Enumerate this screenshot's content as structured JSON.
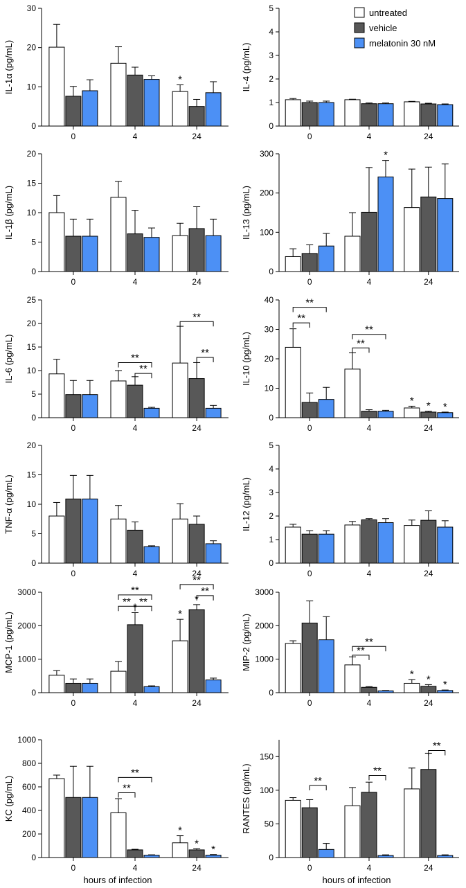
{
  "colors": {
    "untreated": "#ffffff",
    "vehicle": "#585858",
    "melatonin": "#4c90f5",
    "edge": "#000000"
  },
  "legend": [
    {
      "key": "untreated",
      "label": "untreated"
    },
    {
      "key": "vehicle",
      "label": "vehicle"
    },
    {
      "key": "melatonin",
      "label": "melatonin 30 nM"
    }
  ],
  "x_axis_label": "hours of infection",
  "chart_data": [
    {
      "id": "il1a",
      "type": "bar",
      "ylabel": "IL-1α (pg/mL)",
      "ylim": [
        0,
        30
      ],
      "yticks": [
        0,
        10,
        20,
        30
      ],
      "categories": [
        "0",
        "4",
        "24"
      ],
      "series": [
        {
          "name": "untreated",
          "values": [
            20.1,
            16.0,
            8.8
          ],
          "errors": [
            5.8,
            4.2,
            1.7
          ]
        },
        {
          "name": "vehicle",
          "values": [
            7.6,
            13.0,
            5.0
          ],
          "errors": [
            2.5,
            2.0,
            1.8
          ]
        },
        {
          "name": "melatonin 30 nM",
          "values": [
            9.0,
            11.9,
            8.5
          ],
          "errors": [
            2.8,
            0.9,
            2.8
          ]
        }
      ],
      "stars": [
        {
          "group": 2,
          "series": 0,
          "label": "*"
        }
      ],
      "brackets": []
    },
    {
      "id": "il4",
      "type": "bar",
      "ylabel": "IL-4 (pg/mL)",
      "ylim": [
        0,
        5
      ],
      "yticks": [
        0,
        1,
        2,
        3,
        4,
        5
      ],
      "categories": [
        "0",
        "4",
        "24"
      ],
      "series": [
        {
          "name": "untreated",
          "values": [
            1.12,
            1.12,
            1.03
          ],
          "errors": [
            0.05,
            0.02,
            0.02
          ]
        },
        {
          "name": "vehicle",
          "values": [
            1.0,
            0.95,
            0.94
          ],
          "errors": [
            0.06,
            0.03,
            0.03
          ]
        },
        {
          "name": "melatonin 30 nM",
          "values": [
            1.0,
            0.95,
            0.91
          ],
          "errors": [
            0.06,
            0.03,
            0.03
          ]
        }
      ],
      "stars": [],
      "brackets": []
    },
    {
      "id": "il1b",
      "type": "bar",
      "ylabel": "IL-1β (pg/mL)",
      "ylim": [
        0,
        20
      ],
      "yticks": [
        0,
        5,
        10,
        15,
        20
      ],
      "categories": [
        "0",
        "4",
        "24"
      ],
      "series": [
        {
          "name": "untreated",
          "values": [
            10.0,
            12.6,
            6.1
          ],
          "errors": [
            2.9,
            2.7,
            2.1
          ]
        },
        {
          "name": "vehicle",
          "values": [
            6.0,
            6.4,
            7.3
          ],
          "errors": [
            2.9,
            4.0,
            3.7
          ]
        },
        {
          "name": "melatonin 30 nM",
          "values": [
            6.0,
            5.8,
            6.1
          ],
          "errors": [
            2.9,
            1.6,
            2.8
          ]
        }
      ],
      "stars": [],
      "brackets": []
    },
    {
      "id": "il13",
      "type": "bar",
      "ylabel": "IL-13 (pg/mL)",
      "ylim": [
        0,
        300
      ],
      "yticks": [
        0,
        100,
        200,
        300
      ],
      "categories": [
        "0",
        "4",
        "24"
      ],
      "series": [
        {
          "name": "untreated",
          "values": [
            38,
            90,
            163
          ],
          "errors": [
            20,
            60,
            98
          ]
        },
        {
          "name": "vehicle",
          "values": [
            46,
            151,
            190
          ],
          "errors": [
            22,
            114,
            76
          ]
        },
        {
          "name": "melatonin 30 nM",
          "values": [
            65,
            241,
            186
          ],
          "errors": [
            32,
            42,
            88
          ]
        }
      ],
      "stars": [
        {
          "group": 1,
          "series": 2,
          "label": "*"
        }
      ],
      "brackets": []
    },
    {
      "id": "il6",
      "type": "bar",
      "ylabel": "IL-6 (pg/mL)",
      "ylim": [
        0,
        25
      ],
      "yticks": [
        0,
        5,
        10,
        15,
        20,
        25
      ],
      "categories": [
        "0",
        "4",
        "24"
      ],
      "series": [
        {
          "name": "untreated",
          "values": [
            9.3,
            7.8,
            11.6
          ],
          "errors": [
            3.1,
            2.2,
            7.8
          ]
        },
        {
          "name": "vehicle",
          "values": [
            4.9,
            6.9,
            8.3
          ],
          "errors": [
            3.0,
            1.8,
            3.4
          ]
        },
        {
          "name": "melatonin 30 nM",
          "values": [
            4.9,
            2.0,
            2.0
          ],
          "errors": [
            3.0,
            0.2,
            0.6
          ]
        }
      ],
      "stars": [],
      "brackets": [
        {
          "group": 1,
          "from": 0,
          "to": 2,
          "y": 11.7,
          "label": "**"
        },
        {
          "group": 1,
          "from": 1,
          "to": 2,
          "y": 9.4,
          "label": "**"
        },
        {
          "group": 2,
          "from": 0,
          "to": 2,
          "y": 20.4,
          "label": "**"
        },
        {
          "group": 2,
          "from": 1,
          "to": 2,
          "y": 12.8,
          "label": "**"
        }
      ]
    },
    {
      "id": "il10",
      "type": "bar",
      "ylabel": "IL-10 (pg/mL)",
      "ylim": [
        0,
        40
      ],
      "yticks": [
        0,
        10,
        20,
        30,
        40
      ],
      "categories": [
        "0",
        "4",
        "24"
      ],
      "series": [
        {
          "name": "untreated",
          "values": [
            23.9,
            16.5,
            3.3
          ],
          "errors": [
            6.3,
            5.6,
            0.6
          ]
        },
        {
          "name": "vehicle",
          "values": [
            5.2,
            2.2,
            1.9
          ],
          "errors": [
            3.2,
            0.5,
            0.3
          ]
        },
        {
          "name": "melatonin 30 nM",
          "values": [
            6.2,
            2.2,
            1.7
          ],
          "errors": [
            4.1,
            0.3,
            0.2
          ]
        }
      ],
      "stars": [
        {
          "group": 2,
          "series": 0,
          "label": "*"
        },
        {
          "group": 2,
          "series": 1,
          "label": "*"
        },
        {
          "group": 2,
          "series": 2,
          "label": "*"
        }
      ],
      "brackets": [
        {
          "group": 0,
          "from": 0,
          "to": 2,
          "y": 37.5,
          "label": "**"
        },
        {
          "group": 0,
          "from": 0,
          "to": 1,
          "y": 32.2,
          "label": "**"
        },
        {
          "group": 1,
          "from": 0,
          "to": 2,
          "y": 28.3,
          "label": "**"
        },
        {
          "group": 1,
          "from": 0,
          "to": 1,
          "y": 23.7,
          "label": "**"
        }
      ]
    },
    {
      "id": "tnfa",
      "type": "bar",
      "ylabel": "TNF-α (pg/mL)",
      "ylim": [
        0,
        20
      ],
      "yticks": [
        0,
        5,
        10,
        15,
        20
      ],
      "categories": [
        "0",
        "4",
        "24"
      ],
      "series": [
        {
          "name": "untreated",
          "values": [
            8.0,
            7.5,
            7.5
          ],
          "errors": [
            2.3,
            2.3,
            2.6
          ]
        },
        {
          "name": "vehicle",
          "values": [
            10.9,
            5.6,
            6.6
          ],
          "errors": [
            4.0,
            1.4,
            1.4
          ]
        },
        {
          "name": "melatonin 30 nM",
          "values": [
            10.9,
            2.8,
            3.3
          ],
          "errors": [
            4.0,
            0.15,
            0.5
          ]
        }
      ],
      "stars": [],
      "brackets": []
    },
    {
      "id": "il12",
      "type": "bar",
      "ylabel": "IL-12 (pg/mL)",
      "ylim": [
        0,
        5
      ],
      "yticks": [
        0,
        1,
        2,
        3,
        4,
        5
      ],
      "categories": [
        "0",
        "4",
        "24"
      ],
      "series": [
        {
          "name": "untreated",
          "values": [
            1.53,
            1.62,
            1.6
          ],
          "errors": [
            0.12,
            0.15,
            0.23
          ]
        },
        {
          "name": "vehicle",
          "values": [
            1.23,
            1.84,
            1.82
          ],
          "errors": [
            0.15,
            0.05,
            0.4
          ]
        },
        {
          "name": "melatonin 30 nM",
          "values": [
            1.23,
            1.72,
            1.53
          ],
          "errors": [
            0.15,
            0.17,
            0.27
          ]
        }
      ],
      "stars": [],
      "brackets": []
    },
    {
      "id": "mcp1",
      "type": "bar",
      "ylabel": "MCP-1 (pg/mL)",
      "ylim": [
        0,
        3000
      ],
      "yticks": [
        0,
        1000,
        2000,
        3000
      ],
      "categories": [
        "0",
        "4",
        "24"
      ],
      "series": [
        {
          "name": "untreated",
          "values": [
            520,
            640,
            1550
          ],
          "errors": [
            140,
            290,
            640
          ]
        },
        {
          "name": "vehicle",
          "values": [
            280,
            2030,
            2480
          ],
          "errors": [
            130,
            360,
            150
          ]
        },
        {
          "name": "melatonin 30 nM",
          "values": [
            280,
            180,
            380
          ],
          "errors": [
            130,
            25,
            55
          ]
        }
      ],
      "stars": [
        {
          "group": 1,
          "series": 1,
          "label": "*"
        },
        {
          "group": 2,
          "series": 0,
          "label": "*"
        },
        {
          "group": 2,
          "series": 1,
          "label": "*"
        }
      ],
      "brackets": [
        {
          "group": 1,
          "from": 0,
          "to": 2,
          "y": 2920,
          "label": "**"
        },
        {
          "group": 1,
          "from": 0,
          "to": 1,
          "y": 2580,
          "label": "**"
        },
        {
          "group": 1,
          "from": 1,
          "to": 2,
          "y": 2580,
          "label": "**"
        },
        {
          "group": 2,
          "from": 0,
          "to": 2,
          "y": 3230,
          "label": "**"
        },
        {
          "group": 2,
          "from": 1,
          "to": 2,
          "y": 2900,
          "label": "**"
        }
      ]
    },
    {
      "id": "mip2",
      "type": "bar",
      "ylabel": "MIP-2 (pg/mL)",
      "ylim": [
        0,
        3000
      ],
      "yticks": [
        0,
        1000,
        2000,
        3000
      ],
      "categories": [
        "0",
        "4",
        "24"
      ],
      "series": [
        {
          "name": "untreated",
          "values": [
            1470,
            830,
            280
          ],
          "errors": [
            80,
            240,
            110
          ]
        },
        {
          "name": "vehicle",
          "values": [
            2080,
            160,
            190
          ],
          "errors": [
            660,
            20,
            50
          ]
        },
        {
          "name": "melatonin 30 nM",
          "values": [
            1580,
            55,
            65
          ],
          "errors": [
            690,
            10,
            15
          ]
        }
      ],
      "stars": [
        {
          "group": 2,
          "series": 0,
          "label": "*"
        },
        {
          "group": 2,
          "series": 1,
          "label": "*"
        },
        {
          "group": 2,
          "series": 2,
          "label": "*"
        }
      ],
      "brackets": [
        {
          "group": 1,
          "from": 0,
          "to": 2,
          "y": 1380,
          "label": "**"
        },
        {
          "group": 1,
          "from": 0,
          "to": 1,
          "y": 1120,
          "label": "**"
        }
      ]
    },
    {
      "id": "kc",
      "type": "bar",
      "ylabel": "KC (pg/mL)",
      "ylim": [
        0,
        1000
      ],
      "yticks": [
        0,
        200,
        400,
        600,
        800,
        1000
      ],
      "categories": [
        "0",
        "4",
        "24"
      ],
      "series": [
        {
          "name": "untreated",
          "values": [
            670,
            380,
            125
          ],
          "errors": [
            30,
            120,
            60
          ]
        },
        {
          "name": "vehicle",
          "values": [
            510,
            65,
            65
          ],
          "errors": [
            265,
            5,
            10
          ]
        },
        {
          "name": "melatonin 30 nM",
          "values": [
            510,
            20,
            20
          ],
          "errors": [
            265,
            3,
            5
          ]
        }
      ],
      "stars": [
        {
          "group": 2,
          "series": 0,
          "label": "*"
        },
        {
          "group": 2,
          "series": 1,
          "label": "*"
        },
        {
          "group": 2,
          "series": 2,
          "label": "*"
        }
      ],
      "brackets": [
        {
          "group": 1,
          "from": 0,
          "to": 2,
          "y": 680,
          "label": "**"
        },
        {
          "group": 1,
          "from": 0,
          "to": 1,
          "y": 550,
          "label": "**"
        }
      ]
    },
    {
      "id": "rantes",
      "type": "bar",
      "ylabel": "RANTES (pg/mL)",
      "ylim": [
        0,
        175
      ],
      "yticks": [
        0,
        50,
        100,
        150
      ],
      "categories": [
        "0",
        "4",
        "24"
      ],
      "series": [
        {
          "name": "untreated",
          "values": [
            85,
            77,
            102
          ],
          "errors": [
            4,
            27,
            31
          ]
        },
        {
          "name": "vehicle",
          "values": [
            74,
            97,
            131
          ],
          "errors": [
            12,
            15,
            24
          ]
        },
        {
          "name": "melatonin 30 nM",
          "values": [
            12,
            3,
            3
          ],
          "errors": [
            9,
            1,
            1
          ]
        }
      ],
      "stars": [],
      "brackets": [
        {
          "group": 0,
          "from": 1,
          "to": 2,
          "y": 107,
          "label": "**"
        },
        {
          "group": 1,
          "from": 1,
          "to": 2,
          "y": 122,
          "label": "**"
        },
        {
          "group": 2,
          "from": 1,
          "to": 2,
          "y": 159,
          "label": "**"
        }
      ]
    }
  ]
}
